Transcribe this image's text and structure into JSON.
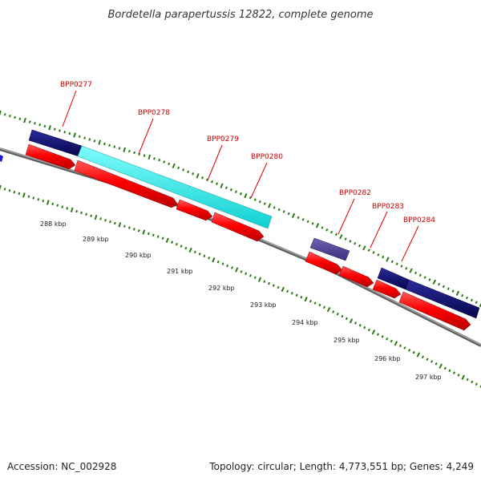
{
  "title": "Bordetella parapertussis 12822, complete genome",
  "footer": {
    "accession": "Accession: NC_002928",
    "summary": "Topology: circular; Length: 4,773,551 bp; Genes: 4,249"
  },
  "scale_labels": [
    "288 kbp",
    "289 kbp",
    "290 kbp",
    "291 kbp",
    "292 kbp",
    "293 kbp",
    "294 kbp",
    "295 kbp",
    "296 kbp",
    "297 kbp"
  ],
  "gene_labels": [
    "BPP0277",
    "BPP0278",
    "BPP0279",
    "BPP0280",
    "BPP0282",
    "BPP0283",
    "BPP0284"
  ],
  "colors": {
    "backbone": "#8c8c8c",
    "forward_gene": "#ff0000",
    "reverse_gene_dark": "#0a0a6e",
    "reverse_gene_cyan": "#22eeee",
    "reverse_gene_purple": "#4b3d8f",
    "tick": "#2a7a10",
    "label": "#cc0000"
  }
}
